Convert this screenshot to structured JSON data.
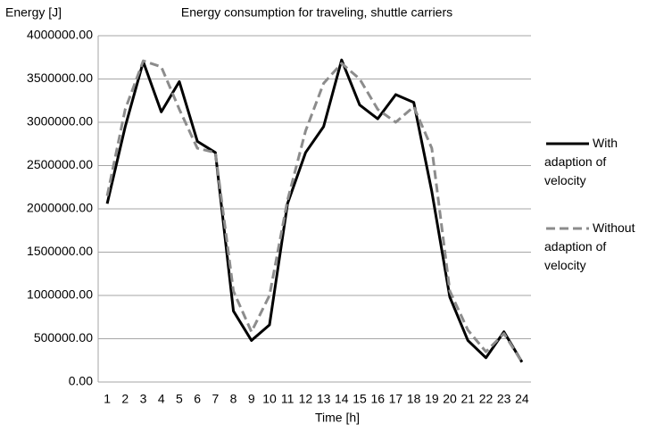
{
  "chart_data": {
    "type": "line",
    "title": "Energy consumption for traveling, shuttle carriers",
    "y_label": "Energy [J]",
    "x_label": "Time [h]",
    "categories": [
      1,
      2,
      3,
      4,
      5,
      6,
      7,
      8,
      9,
      10,
      11,
      12,
      13,
      14,
      15,
      16,
      17,
      18,
      19,
      20,
      21,
      22,
      23,
      24
    ],
    "series": [
      {
        "name": "With adaption of velocity",
        "color": "#000000",
        "dash": false,
        "values": [
          2060000,
          2950000,
          3700000,
          3120000,
          3470000,
          2780000,
          2650000,
          820000,
          480000,
          660000,
          2060000,
          2650000,
          2950000,
          3720000,
          3200000,
          3040000,
          3320000,
          3230000,
          2200000,
          980000,
          480000,
          280000,
          580000,
          230000
        ]
      },
      {
        "name": "Without adaption of velocity",
        "color": "#8c8c8c",
        "dash": true,
        "values": [
          2150000,
          3150000,
          3710000,
          3640000,
          3150000,
          2700000,
          2650000,
          1050000,
          580000,
          1000000,
          2100000,
          2900000,
          3450000,
          3680000,
          3500000,
          3150000,
          3000000,
          3180000,
          2700000,
          1050000,
          600000,
          350000,
          560000,
          230000
        ]
      }
    ],
    "ylim": [
      0,
      4000000
    ],
    "yticks": [
      {
        "value": 0,
        "label": "0.00"
      },
      {
        "value": 500000,
        "label": "500000.00"
      },
      {
        "value": 1000000,
        "label": "1000000.00"
      },
      {
        "value": 1500000,
        "label": "1500000.00"
      },
      {
        "value": 2000000,
        "label": "2000000.00"
      },
      {
        "value": 2500000,
        "label": "2500000.00"
      },
      {
        "value": 3000000,
        "label": "3000000.00"
      },
      {
        "value": 3500000,
        "label": "3500000.00"
      },
      {
        "value": 4000000,
        "label": "4000000.00"
      }
    ],
    "grid": true,
    "legend": "right"
  }
}
